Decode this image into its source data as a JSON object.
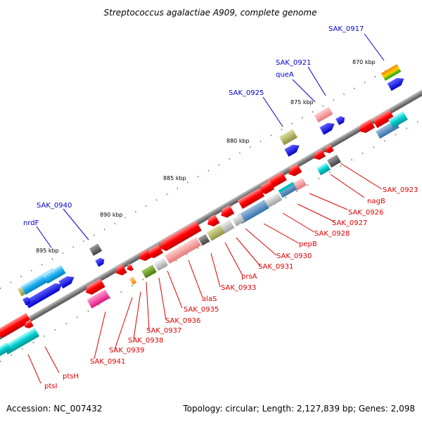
{
  "title": "Streptococcus agalactiae A909, complete genome",
  "footer": {
    "accession": "Accession: NC_007432",
    "summary": "Topology: circular; Length: 2,127,839 bp; Genes: 2,098"
  },
  "colors": {
    "forward_label": "#0000cc",
    "reverse_label": "#e00000",
    "backbone": "#808080",
    "ticks": "#1a7a1a"
  },
  "kbp_ticks": [
    "870 kbp",
    "875 kbp",
    "880 kbp",
    "885 kbp",
    "890 kbp",
    "895 kbp"
  ],
  "forward_labels": [
    "SAK_0917",
    "SAK_0921",
    "queA",
    "SAK_0925",
    "SAK_0940",
    "nrdF"
  ],
  "reverse_labels": [
    "SAK_0923",
    "nagB",
    "SAK_0926",
    "SAK_0927",
    "SAK_0928",
    "pepB",
    "SAK_0930",
    "SAK_0931",
    "prsA",
    "SAK_0933",
    "alaS",
    "SAK_0935",
    "SAK_0936",
    "SAK_0937",
    "SAK_0938",
    "SAK_0939",
    "SAK_0941",
    "ptsH",
    "ptsI"
  ]
}
